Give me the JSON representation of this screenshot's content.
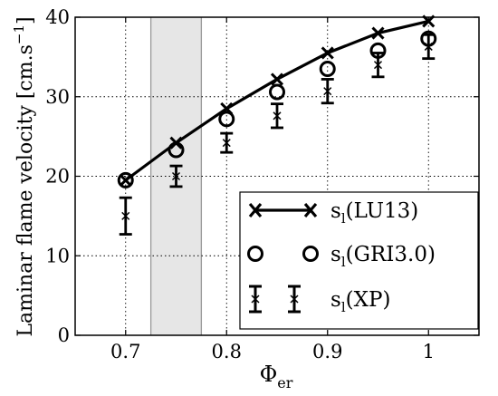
{
  "chart_data": {
    "type": "line",
    "title": "",
    "xlabel": {
      "main": "Φ",
      "sub": "er"
    },
    "ylabel": {
      "main": "Laminar flame velocity [cm.s",
      "sup": "−1",
      "end": "]"
    },
    "xlim": [
      0.65,
      1.05
    ],
    "ylim": [
      0,
      40
    ],
    "x_ticks": [
      "0.7",
      "0.8",
      "0.9",
      "1"
    ],
    "y_ticks": [
      "0",
      "10",
      "20",
      "30",
      "40"
    ],
    "grid": true,
    "legend_position": "lower-right",
    "shaded_band": {
      "x_from": 0.725,
      "x_to": 0.775
    },
    "series": [
      {
        "name": {
          "main": "s",
          "sub": "l",
          "rest": "(LU13)"
        },
        "marker": "x",
        "line": true,
        "x": [
          0.7,
          0.75,
          0.8,
          0.85,
          0.9,
          0.95,
          1.0
        ],
        "y": [
          19.5,
          24.2,
          28.5,
          32.2,
          35.5,
          38.0,
          39.5
        ]
      },
      {
        "name": {
          "main": "s",
          "sub": "l",
          "rest": "(GRI3.0)"
        },
        "marker": "o",
        "line": false,
        "x": [
          0.7,
          0.75,
          0.8,
          0.85,
          0.9,
          0.95,
          1.0
        ],
        "y": [
          19.5,
          23.3,
          27.2,
          30.6,
          33.5,
          35.8,
          37.3
        ]
      },
      {
        "name": {
          "main": "s",
          "sub": "l",
          "rest": "(XP)"
        },
        "marker": "x-errorbar",
        "line": false,
        "x": [
          0.7,
          0.75,
          0.8,
          0.85,
          0.9,
          0.95,
          1.0
        ],
        "y": [
          15.0,
          20.0,
          24.2,
          27.6,
          30.7,
          34.0,
          36.3
        ],
        "err": [
          2.3,
          1.3,
          1.2,
          1.5,
          1.5,
          1.5,
          1.5
        ]
      }
    ]
  }
}
